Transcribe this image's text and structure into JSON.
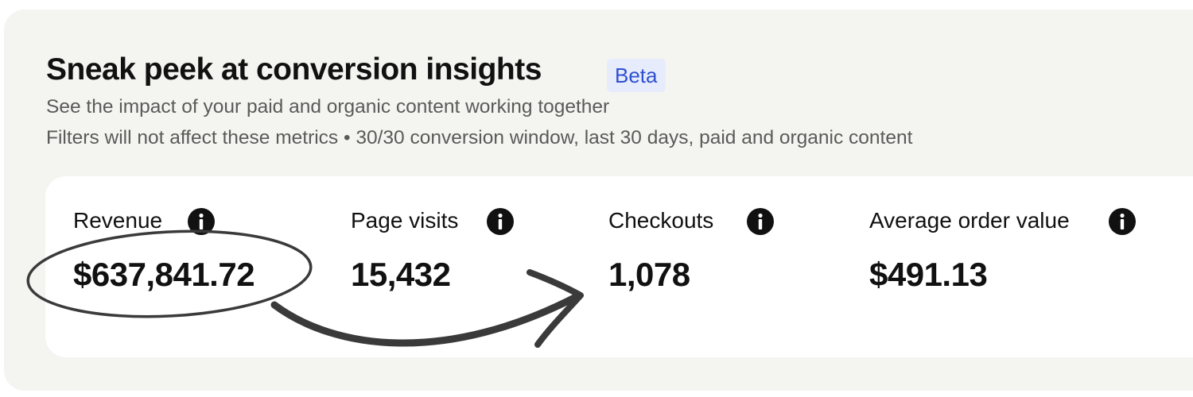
{
  "header": {
    "title": "Sneak peek at conversion insights",
    "badge": "Beta",
    "subtitle": "See the impact of your paid and organic content working together",
    "note": "Filters will not affect these metrics • 30/30 conversion window, last 30 days, paid and organic content"
  },
  "metrics": [
    {
      "label": "Revenue",
      "value": "$637,841.72"
    },
    {
      "label": "Page visits",
      "value": "15,432"
    },
    {
      "label": "Checkouts",
      "value": "1,078"
    },
    {
      "label": "Average order value",
      "value": "$491.13"
    }
  ]
}
